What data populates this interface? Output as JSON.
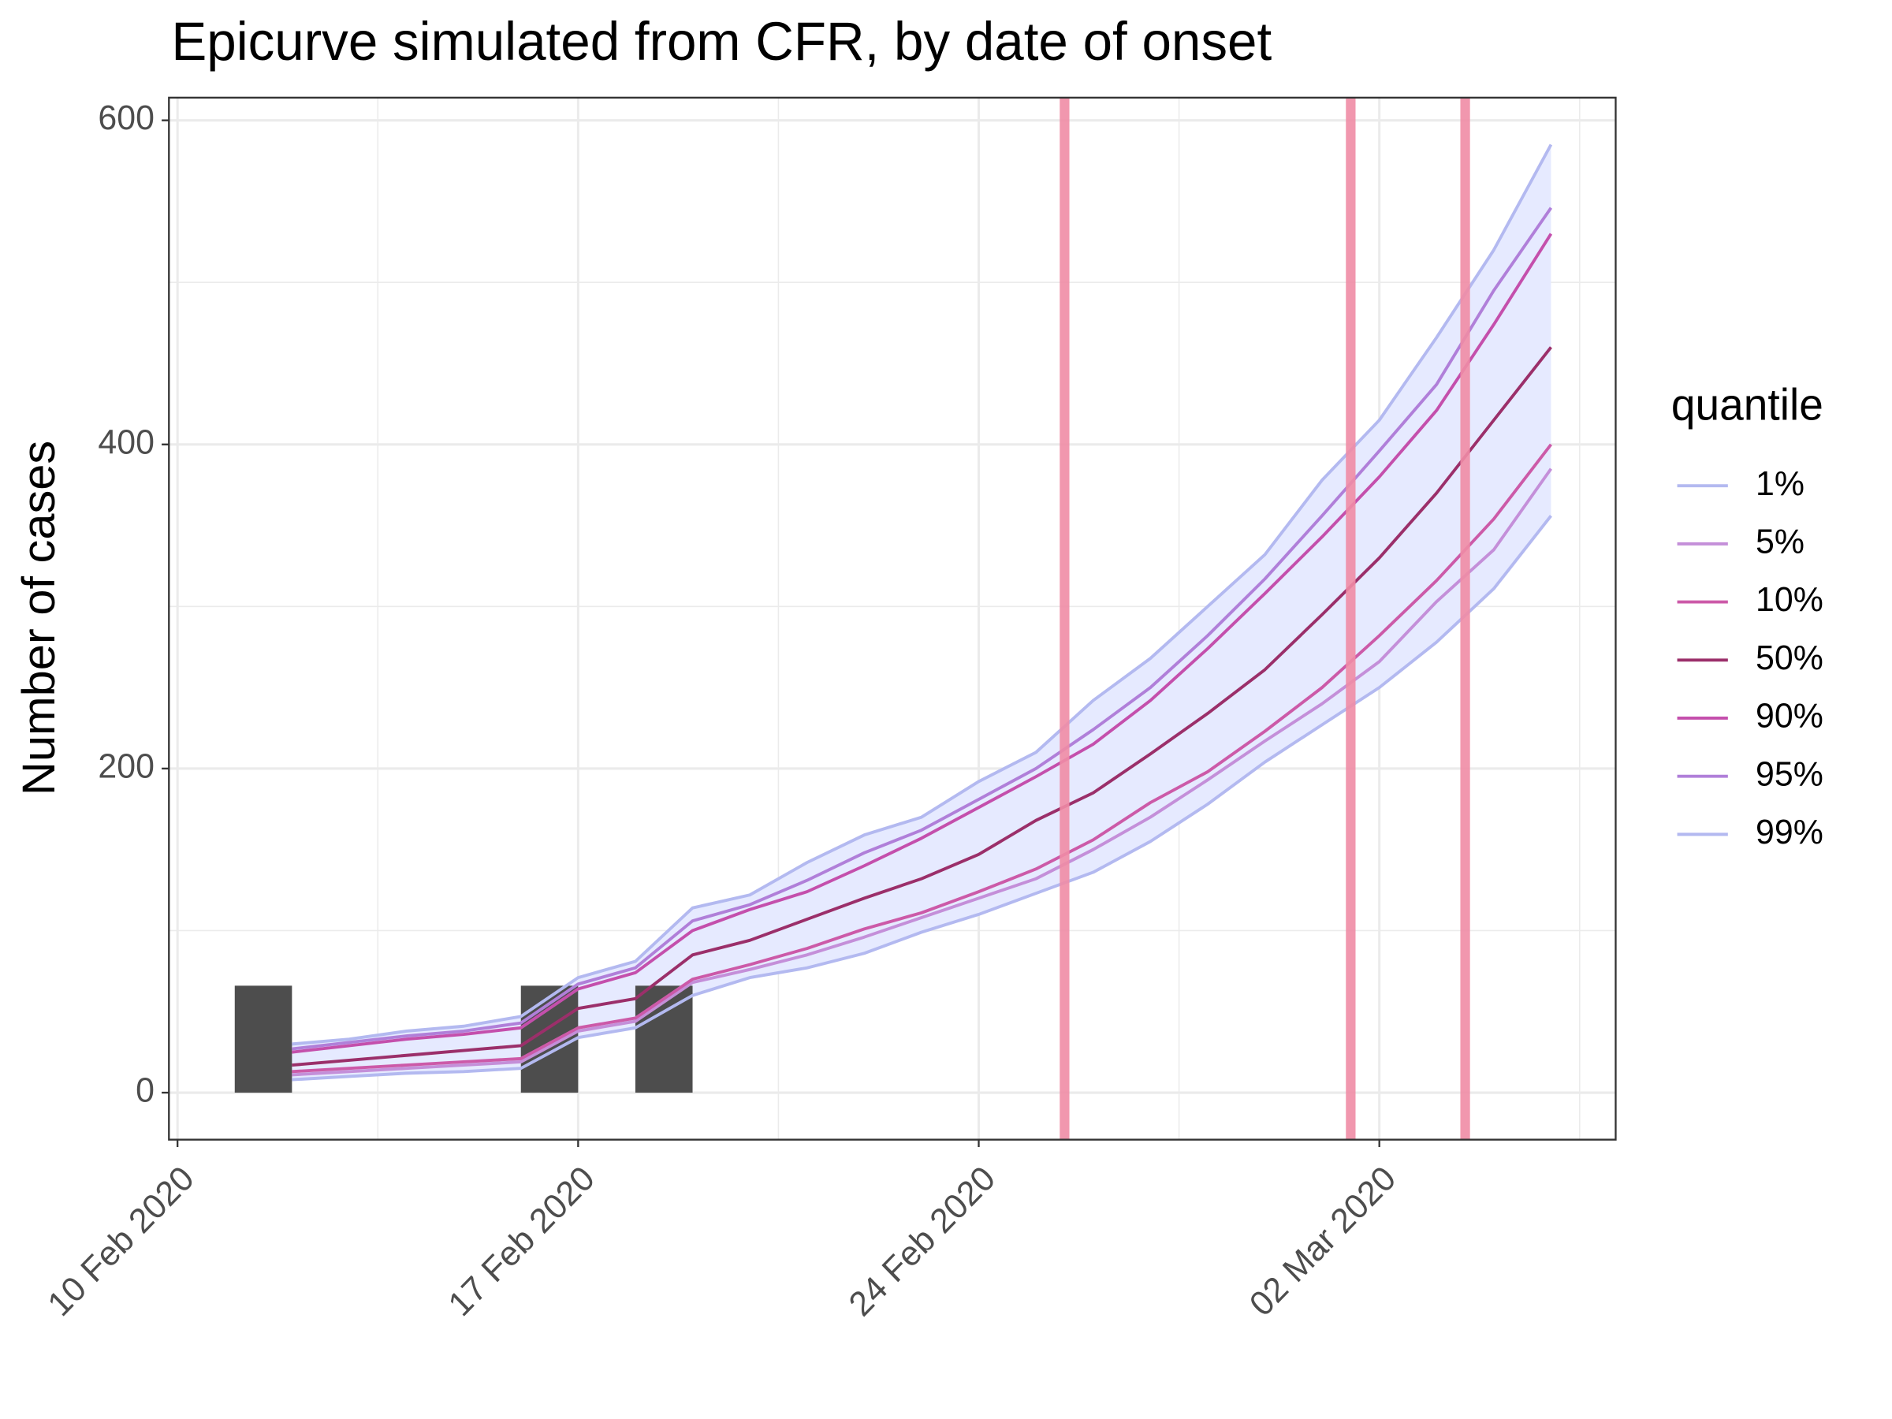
{
  "chart_data": {
    "type": "line",
    "title": "Epicurve simulated from CFR, by date of onset",
    "y_label": "Number of cases",
    "legend_title": "quantile",
    "legend": "right",
    "grid": true,
    "xlim": [
      "2020-02-09T20:24",
      "2020-03-06T03:07"
    ],
    "xticks": [
      {
        "value": "2020-02-10",
        "label": "10 Feb 2020"
      },
      {
        "value": "2020-02-17",
        "label": "17 Feb 2020"
      },
      {
        "value": "2020-02-24",
        "label": "24 Feb 2020"
      },
      {
        "value": "2020-03-02",
        "label": "02 Mar 2020"
      }
    ],
    "minor_xticks": [
      "2020-02-13T12:00",
      "2020-02-20T12:00",
      "2020-02-27T12:00",
      "2020-03-05T12:00"
    ],
    "ylim": [
      -29,
      614
    ],
    "yticks": [
      0,
      200,
      400,
      600
    ],
    "minor_yticks": [
      100,
      300,
      500
    ],
    "x": [
      "2020-02-12",
      "2020-02-13",
      "2020-02-14",
      "2020-02-15",
      "2020-02-16",
      "2020-02-17",
      "2020-02-18",
      "2020-02-19",
      "2020-02-20",
      "2020-02-21",
      "2020-02-22",
      "2020-02-23",
      "2020-02-24",
      "2020-02-25",
      "2020-02-26",
      "2020-02-27",
      "2020-02-28",
      "2020-02-29",
      "2020-03-01",
      "2020-03-02",
      "2020-03-03",
      "2020-03-04",
      "2020-03-05"
    ],
    "band_color": "#e6eaff",
    "series": [
      {
        "name": "1%",
        "color": "#b3b9f0",
        "values": [
          8,
          10,
          12,
          13,
          15,
          34,
          40,
          60,
          71,
          77,
          86,
          99,
          110,
          123,
          136,
          155,
          178,
          204,
          227,
          250,
          278,
          311,
          356
        ]
      },
      {
        "name": "5%",
        "color": "#c48fd9",
        "values": [
          11,
          13,
          15,
          17,
          19,
          38,
          44,
          68,
          76,
          85,
          96,
          108,
          120,
          132,
          150,
          170,
          193,
          217,
          240,
          266,
          303,
          335,
          385
        ]
      },
      {
        "name": "10%",
        "color": "#cc5aa8",
        "values": [
          13,
          15,
          17,
          19,
          21,
          40,
          46,
          70,
          79,
          89,
          101,
          111,
          124,
          138,
          156,
          179,
          198,
          223,
          250,
          282,
          316,
          354,
          400
        ]
      },
      {
        "name": "50%",
        "color": "#9b2f6a",
        "values": [
          17,
          20,
          23,
          26,
          29,
          52,
          58,
          85,
          94,
          107,
          120,
          132,
          147,
          168,
          185,
          209,
          234,
          261,
          295,
          330,
          370,
          415,
          460
        ]
      },
      {
        "name": "90%",
        "color": "#c44fac",
        "values": [
          25,
          29,
          33,
          36,
          40,
          64,
          74,
          100,
          113,
          124,
          140,
          157,
          176,
          195,
          215,
          242,
          274,
          308,
          343,
          380,
          421,
          474,
          530
        ]
      },
      {
        "name": "95%",
        "color": "#b07fd9",
        "values": [
          27,
          31,
          35,
          38,
          43,
          67,
          77,
          106,
          116,
          131,
          148,
          162,
          181,
          200,
          224,
          250,
          282,
          317,
          356,
          396,
          437,
          495,
          546
        ]
      },
      {
        "name": "99%",
        "color": "#b3b9f0",
        "values": [
          30,
          33,
          38,
          41,
          47,
          71,
          81,
          114,
          122,
          142,
          159,
          170,
          192,
          210,
          242,
          268,
          300,
          332,
          378,
          415,
          466,
          520,
          585
        ]
      }
    ],
    "bars": {
      "color": "#4d4d4d",
      "x": [
        "2020-02-11",
        "2020-02-16",
        "2020-02-18"
      ],
      "values": [
        66,
        66,
        66
      ]
    },
    "vlines": {
      "color": "#f08ca6",
      "x": [
        "2020-02-25T12:00",
        "2020-03-01T12:00",
        "2020-03-03T12:00"
      ]
    }
  }
}
